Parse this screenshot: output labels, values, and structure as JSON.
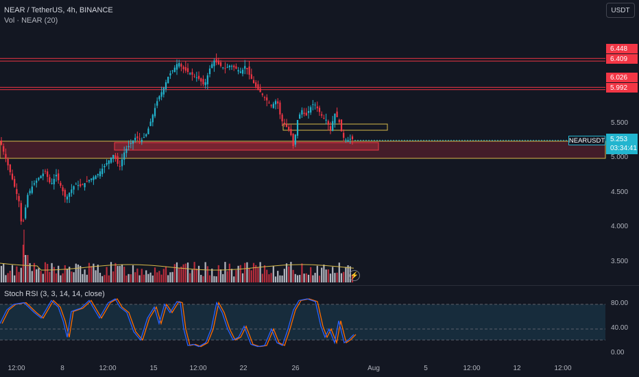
{
  "header": {
    "title": "NEAR / TetherUS, 4h, BINANCE",
    "volume_label": "Vol · NEAR (20)"
  },
  "currency_button": "USDT",
  "indicator": {
    "label": "Stoch RSI (3, 3, 14, 14, close)"
  },
  "price_axis": [
    "5.500",
    "5.000",
    "4.500",
    "4.000",
    "3.500"
  ],
  "stoch_axis": [
    "80.00",
    "40.00",
    "0.00"
  ],
  "level_tags": [
    "6.448",
    "6.409",
    "6.026",
    "5.992"
  ],
  "symbol_tag": "NEARUSDT",
  "price_tag": {
    "price": "5.253",
    "countdown": "03:34:41"
  },
  "time_axis": [
    "12:00",
    "8",
    "12:00",
    "15",
    "12:00",
    "22",
    "26",
    "Aug",
    "5",
    "12:00",
    "12",
    "12:00"
  ],
  "colors": {
    "up": "#22b5cf",
    "down": "#f23645",
    "background": "#131722",
    "zone": "#f23645",
    "yellow_line": "#d8bb4a",
    "stoch_k": "#2962ff",
    "stoch_d": "#ff6d00"
  },
  "icons": [
    "flash-icon"
  ],
  "chart_data": {
    "type": "candlestick",
    "symbol": "NEAR / TetherUS",
    "interval": "4h",
    "exchange": "BINANCE",
    "y_range": [
      3.2,
      6.8
    ],
    "last_price": 5.253,
    "horizontal_levels": [
      6.448,
      6.409,
      6.026,
      5.992
    ],
    "support_zone": [
      4.99,
      5.24
    ],
    "stoch_range": [
      0,
      100
    ],
    "stoch_bands": [
      20,
      80
    ],
    "price_path": [
      [
        0,
        5.25
      ],
      [
        8,
        5.0
      ],
      [
        16,
        4.75
      ],
      [
        22,
        4.55
      ],
      [
        28,
        4.35
      ],
      [
        32,
        3.95
      ],
      [
        36,
        4.2
      ],
      [
        40,
        4.45
      ],
      [
        48,
        4.6
      ],
      [
        56,
        4.7
      ],
      [
        66,
        4.8
      ],
      [
        74,
        4.6
      ],
      [
        82,
        4.75
      ],
      [
        90,
        4.55
      ],
      [
        96,
        4.4
      ],
      [
        102,
        4.5
      ],
      [
        110,
        4.62
      ],
      [
        118,
        4.58
      ],
      [
        126,
        4.65
      ],
      [
        134,
        4.7
      ],
      [
        142,
        4.75
      ],
      [
        150,
        4.85
      ],
      [
        158,
        4.95
      ],
      [
        166,
        5.05
      ],
      [
        174,
        4.85
      ],
      [
        182,
        5.1
      ],
      [
        190,
        5.2
      ],
      [
        198,
        5.3
      ],
      [
        206,
        5.25
      ],
      [
        214,
        5.35
      ],
      [
        222,
        5.6
      ],
      [
        230,
        5.85
      ],
      [
        238,
        6.0
      ],
      [
        246,
        6.2
      ],
      [
        254,
        6.3
      ],
      [
        260,
        6.4
      ],
      [
        266,
        6.3
      ],
      [
        274,
        6.25
      ],
      [
        282,
        6.2
      ],
      [
        290,
        6.15
      ],
      [
        298,
        6.05
      ],
      [
        306,
        6.3
      ],
      [
        312,
        6.42
      ],
      [
        320,
        6.35
      ],
      [
        328,
        6.3
      ],
      [
        336,
        6.35
      ],
      [
        344,
        6.3
      ],
      [
        352,
        6.25
      ],
      [
        358,
        6.35
      ],
      [
        364,
        6.2
      ],
      [
        372,
        6.05
      ],
      [
        380,
        5.95
      ],
      [
        388,
        5.85
      ],
      [
        396,
        5.75
      ],
      [
        404,
        5.85
      ],
      [
        410,
        5.55
      ],
      [
        418,
        5.45
      ],
      [
        424,
        5.35
      ],
      [
        428,
        5.15
      ],
      [
        434,
        5.55
      ],
      [
        440,
        5.7
      ],
      [
        446,
        5.6
      ],
      [
        452,
        5.72
      ],
      [
        458,
        5.8
      ],
      [
        464,
        5.7
      ],
      [
        470,
        5.6
      ],
      [
        476,
        5.55
      ],
      [
        482,
        5.4
      ],
      [
        488,
        5.65
      ],
      [
        494,
        5.55
      ],
      [
        500,
        5.3
      ],
      [
        506,
        5.25
      ],
      [
        512,
        5.28
      ],
      [
        517,
        5.253
      ]
    ]
  }
}
